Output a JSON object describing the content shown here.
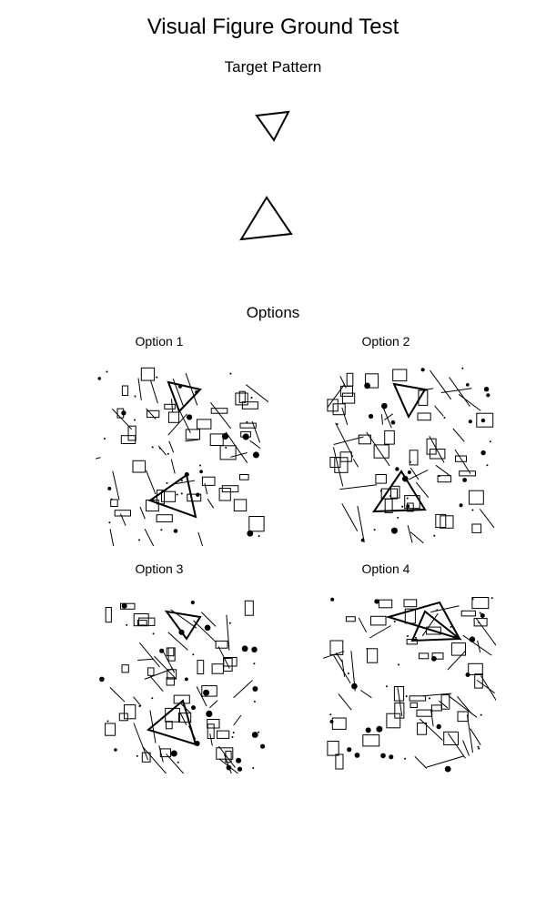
{
  "title": "Visual Figure Ground Test",
  "target_label": "Target Pattern",
  "options_label": "Options",
  "options": [
    {
      "label": "Option 1"
    },
    {
      "label": "Option 2"
    },
    {
      "label": "Option 3"
    },
    {
      "label": "Option 4"
    }
  ],
  "colors": {
    "ink": "#000000",
    "background": "#ffffff"
  }
}
